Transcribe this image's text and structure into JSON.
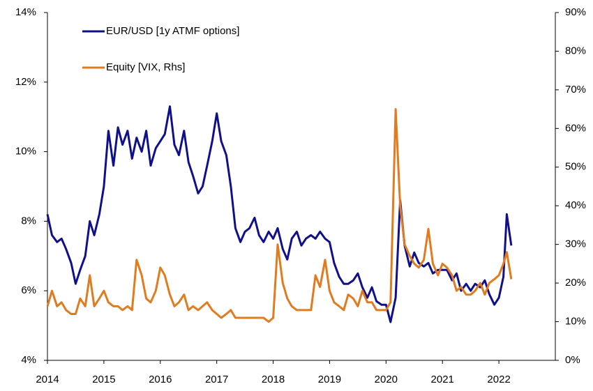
{
  "chart_data": {
    "type": "line",
    "x": [
      2014,
      2014.08,
      2014.17,
      2014.25,
      2014.33,
      2014.42,
      2014.5,
      2014.58,
      2014.67,
      2014.75,
      2014.83,
      2014.92,
      2015,
      2015.08,
      2015.17,
      2015.25,
      2015.33,
      2015.42,
      2015.5,
      2015.58,
      2015.67,
      2015.75,
      2015.83,
      2015.92,
      2016,
      2016.08,
      2016.17,
      2016.25,
      2016.33,
      2016.42,
      2016.5,
      2016.58,
      2016.67,
      2016.75,
      2016.83,
      2016.92,
      2017,
      2017.08,
      2017.17,
      2017.25,
      2017.33,
      2017.42,
      2017.5,
      2017.58,
      2017.67,
      2017.75,
      2017.83,
      2017.92,
      2018,
      2018.08,
      2018.17,
      2018.25,
      2018.33,
      2018.42,
      2018.5,
      2018.58,
      2018.67,
      2018.75,
      2018.83,
      2018.92,
      2019,
      2019.08,
      2019.17,
      2019.25,
      2019.33,
      2019.42,
      2019.5,
      2019.58,
      2019.67,
      2019.75,
      2019.83,
      2019.92,
      2020,
      2020.08,
      2020.17,
      2020.25,
      2020.33,
      2020.42,
      2020.5,
      2020.58,
      2020.67,
      2020.75,
      2020.83,
      2020.92,
      2021,
      2021.08,
      2021.17,
      2021.25,
      2021.33,
      2021.42,
      2021.5,
      2021.58,
      2021.67,
      2021.75,
      2021.83,
      2021.92,
      2022,
      2022.08,
      2022.14,
      2022.22
    ],
    "series": [
      {
        "name": "EUR/USD [1y ATMF options]",
        "color": "#10108a",
        "values": [
          8.2,
          7.6,
          7.4,
          7.5,
          7.2,
          6.8,
          6.2,
          6.6,
          7.0,
          8.0,
          7.6,
          8.2,
          9.0,
          10.6,
          9.6,
          10.7,
          10.2,
          10.6,
          9.8,
          10.4,
          10.0,
          10.6,
          9.6,
          10.1,
          10.3,
          10.5,
          11.3,
          10.2,
          9.9,
          10.6,
          9.7,
          9.3,
          8.8,
          9.0,
          9.6,
          10.3,
          11.1,
          10.3,
          9.9,
          9.0,
          7.8,
          7.4,
          7.7,
          7.8,
          8.1,
          7.6,
          7.4,
          7.7,
          7.5,
          7.8,
          7.2,
          6.9,
          7.5,
          7.7,
          7.3,
          7.5,
          7.6,
          7.5,
          7.7,
          7.5,
          7.4,
          6.8,
          6.4,
          6.2,
          6.2,
          6.3,
          6.5,
          6.1,
          5.8,
          6.1,
          5.7,
          5.6,
          5.6,
          5.1,
          5.8,
          8.6,
          7.3,
          6.7,
          7.1,
          6.8,
          6.7,
          6.8,
          6.5,
          6.6,
          6.6,
          6.6,
          6.3,
          6.5,
          6.0,
          6.2,
          6.0,
          6.2,
          6.1,
          6.3,
          5.9,
          5.6,
          5.8,
          6.4,
          8.2,
          7.3
        ]
      },
      {
        "name": "Equity [VIX, Rhs]",
        "color": "#e07b1f",
        "axis": "y2",
        "values": [
          14,
          18,
          14,
          15,
          13,
          12,
          12,
          16,
          14,
          22,
          14,
          16,
          18,
          15,
          14,
          14,
          13,
          14,
          13,
          26,
          22,
          16,
          15,
          18,
          24,
          22,
          17,
          14,
          15,
          17,
          13,
          14,
          13,
          14,
          15,
          13,
          12,
          11,
          12,
          13,
          11,
          11,
          11,
          11,
          11,
          11,
          11,
          10,
          11,
          30,
          20,
          16,
          14,
          13,
          13,
          13,
          13,
          22,
          19,
          26,
          18,
          15,
          14,
          13,
          17,
          16,
          14,
          18,
          15,
          15,
          13,
          13,
          13,
          15,
          65,
          40,
          30,
          27,
          25,
          24,
          26,
          34,
          25,
          22,
          25,
          24,
          22,
          18,
          19,
          17,
          17,
          18,
          20,
          17,
          20,
          21,
          22,
          25,
          28,
          21
        ]
      }
    ],
    "xlim": [
      2014,
      2023
    ],
    "xticks": [
      2014,
      2015,
      2016,
      2017,
      2018,
      2019,
      2020,
      2021,
      2022
    ],
    "ylim": [
      4,
      14
    ],
    "yticks": [
      {
        "value": 4,
        "label": "4%"
      },
      {
        "value": 6,
        "label": "6%"
      },
      {
        "value": 8,
        "label": "8%"
      },
      {
        "value": 10,
        "label": "10%"
      },
      {
        "value": 12,
        "label": "12%"
      },
      {
        "value": 14,
        "label": "14%"
      }
    ],
    "y2lim": [
      0,
      90
    ],
    "y2ticks": [
      {
        "value": 0,
        "label": "0%"
      },
      {
        "value": 10,
        "label": "10%"
      },
      {
        "value": 20,
        "label": "20%"
      },
      {
        "value": 30,
        "label": "30%"
      },
      {
        "value": 40,
        "label": "40%"
      },
      {
        "value": 50,
        "label": "50%"
      },
      {
        "value": 60,
        "label": "60%"
      },
      {
        "value": 70,
        "label": "70%"
      },
      {
        "value": 80,
        "label": "80%"
      },
      {
        "value": 90,
        "label": "90%"
      }
    ]
  }
}
